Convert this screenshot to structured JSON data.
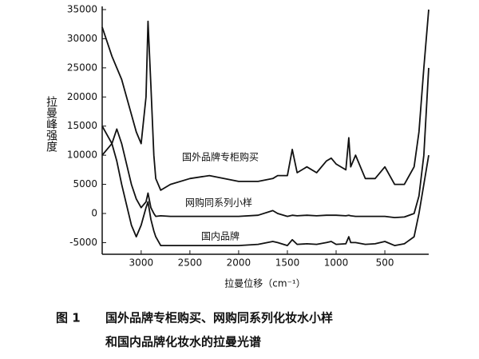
{
  "chart_data": {
    "type": "line",
    "xlabel": "拉曼位移（cm⁻¹）",
    "ylabel": "拉曼峰强度",
    "xlim": [
      3400,
      50
    ],
    "xticks": [
      3000,
      2500,
      2000,
      1500,
      1000,
      500
    ],
    "ylim": [
      -7000,
      35000
    ],
    "yticks": [
      35000,
      30000,
      25000,
      20000,
      15000,
      10000,
      5000,
      0,
      -5000
    ],
    "grid": false,
    "x": [
      3400,
      3300,
      3250,
      3200,
      3100,
      3050,
      3000,
      2950,
      2930,
      2900,
      2870,
      2850,
      2800,
      2700,
      2500,
      2300,
      2000,
      1800,
      1650,
      1600,
      1500,
      1450,
      1400,
      1300,
      1200,
      1100,
      1050,
      1000,
      900,
      870,
      850,
      800,
      700,
      600,
      500,
      400,
      300,
      200,
      150,
      100,
      50
    ],
    "series": [
      {
        "name": "国外品牌专柜购买",
        "color": "#111111",
        "values": [
          32000,
          27000,
          25000,
          23000,
          17000,
          14000,
          12000,
          20000,
          33000,
          22000,
          10000,
          6000,
          4000,
          5000,
          6000,
          6500,
          5500,
          5500,
          6000,
          6500,
          6500,
          11000,
          7000,
          8000,
          7000,
          9000,
          9500,
          8500,
          7500,
          13000,
          8000,
          10000,
          6000,
          6000,
          8000,
          5000,
          5000,
          8000,
          14000,
          25000,
          35000
        ]
      },
      {
        "name": "网购同系列小样",
        "color": "#111111",
        "values": [
          10000,
          12000,
          14500,
          12000,
          5000,
          2500,
          1000,
          2000,
          3500,
          1000,
          0,
          -500,
          -400,
          -500,
          -500,
          -500,
          -500,
          -300,
          500,
          0,
          -500,
          -300,
          -400,
          -300,
          -400,
          -300,
          -300,
          -300,
          -400,
          -300,
          -400,
          -500,
          -500,
          -500,
          -500,
          -700,
          -600,
          0,
          3000,
          10000,
          25000
        ]
      },
      {
        "name": "国内品牌",
        "color": "#111111",
        "values": [
          15000,
          12000,
          9000,
          5000,
          -2000,
          -4000,
          -2000,
          1000,
          2000,
          -1000,
          -3000,
          -4000,
          -5500,
          -5500,
          -5500,
          -5500,
          -5500,
          -5300,
          -4800,
          -5000,
          -5500,
          -4500,
          -5300,
          -5200,
          -5300,
          -5000,
          -4800,
          -5300,
          -5200,
          -4000,
          -5000,
          -5000,
          -5300,
          -5200,
          -4800,
          -5500,
          -5200,
          -4000,
          0,
          5000,
          10000
        ]
      }
    ]
  },
  "caption": {
    "label": "图 1",
    "lines": [
      "国外品牌专柜购买、网购同系列化妆水小样",
      "和国内品牌化妆水的拉曼光谱"
    ]
  }
}
